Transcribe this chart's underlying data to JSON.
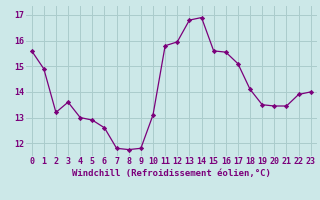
{
  "x": [
    0,
    1,
    2,
    3,
    4,
    5,
    6,
    7,
    8,
    9,
    10,
    11,
    12,
    13,
    14,
    15,
    16,
    17,
    18,
    19,
    20,
    21,
    22,
    23
  ],
  "y": [
    15.6,
    14.9,
    13.2,
    13.6,
    13.0,
    12.9,
    12.6,
    11.8,
    11.75,
    11.8,
    13.1,
    15.8,
    15.95,
    16.8,
    16.9,
    15.6,
    15.55,
    15.1,
    14.1,
    13.5,
    13.45,
    13.45,
    13.9,
    14.0
  ],
  "line_color": "#7B007B",
  "marker": "D",
  "markersize": 2.2,
  "linewidth": 0.9,
  "bg_color": "#cce8e8",
  "grid_color": "#aacccc",
  "xlabel": "Windchill (Refroidissement éolien,°C)",
  "xlabel_fontsize": 6.5,
  "yticks": [
    12,
    13,
    14,
    15,
    16,
    17
  ],
  "xticks": [
    0,
    1,
    2,
    3,
    4,
    5,
    6,
    7,
    8,
    9,
    10,
    11,
    12,
    13,
    14,
    15,
    16,
    17,
    18,
    19,
    20,
    21,
    22,
    23
  ],
  "xlim": [
    -0.5,
    23.5
  ],
  "ylim": [
    11.5,
    17.35
  ],
  "tick_fontsize": 6
}
